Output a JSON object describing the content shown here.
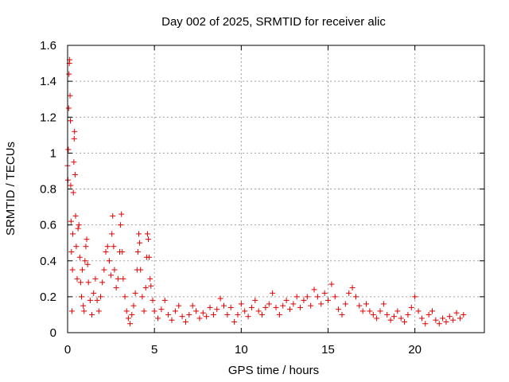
{
  "chart_data": {
    "type": "scatter",
    "title": "Day 002 of 2025, SRMTID for receiver alic",
    "xlabel": "GPS time / hours",
    "ylabel": "SRMTID / TECUs",
    "xlim": [
      0,
      24
    ],
    "ylim": [
      0,
      1.6
    ],
    "xticks": [
      0,
      5,
      10,
      15,
      20
    ],
    "xtick_labels": [
      "0",
      "5",
      "10",
      "15",
      "20"
    ],
    "yticks": [
      0,
      0.2,
      0.4,
      0.6,
      0.8,
      1,
      1.2,
      1.4,
      1.6
    ],
    "ytick_labels": [
      "0",
      "0.2",
      "0.4",
      "0.6",
      "0.8",
      "1",
      "1.2",
      "1.4",
      "1.6"
    ],
    "grid": true,
    "marker": "+",
    "color": "#e00000",
    "series": [
      {
        "name": "SRMTID",
        "points": [
          [
            0.0,
            0.93
          ],
          [
            0.02,
            0.85
          ],
          [
            0.04,
            1.02
          ],
          [
            0.06,
            1.25
          ],
          [
            0.08,
            1.44
          ],
          [
            0.1,
            1.5
          ],
          [
            0.12,
            1.52
          ],
          [
            0.14,
            1.32
          ],
          [
            0.16,
            1.18
          ],
          [
            0.18,
            0.82
          ],
          [
            0.2,
            0.62
          ],
          [
            0.22,
            0.45
          ],
          [
            0.25,
            0.12
          ],
          [
            0.28,
            0.35
          ],
          [
            0.3,
            0.55
          ],
          [
            0.33,
            0.78
          ],
          [
            0.36,
            0.95
          ],
          [
            0.38,
            1.08
          ],
          [
            0.4,
            1.12
          ],
          [
            0.43,
            0.88
          ],
          [
            0.46,
            0.65
          ],
          [
            0.5,
            0.48
          ],
          [
            0.55,
            0.3
          ],
          [
            0.6,
            0.58
          ],
          [
            0.65,
            0.6
          ],
          [
            0.7,
            0.42
          ],
          [
            0.75,
            0.28
          ],
          [
            0.8,
            0.2
          ],
          [
            0.85,
            0.35
          ],
          [
            0.9,
            0.15
          ],
          [
            0.95,
            0.12
          ],
          [
            1.0,
            0.4
          ],
          [
            1.05,
            0.48
          ],
          [
            1.1,
            0.52
          ],
          [
            1.15,
            0.38
          ],
          [
            1.2,
            0.28
          ],
          [
            1.3,
            0.18
          ],
          [
            1.4,
            0.1
          ],
          [
            1.5,
            0.22
          ],
          [
            1.6,
            0.3
          ],
          [
            1.7,
            0.18
          ],
          [
            1.8,
            0.12
          ],
          [
            1.9,
            0.2
          ],
          [
            2.0,
            0.28
          ],
          [
            2.1,
            0.35
          ],
          [
            2.2,
            0.45
          ],
          [
            2.3,
            0.48
          ],
          [
            2.4,
            0.4
          ],
          [
            2.5,
            0.32
          ],
          [
            2.55,
            0.55
          ],
          [
            2.6,
            0.65
          ],
          [
            2.65,
            0.48
          ],
          [
            2.7,
            0.35
          ],
          [
            2.8,
            0.25
          ],
          [
            2.9,
            0.3
          ],
          [
            3.0,
            0.45
          ],
          [
            3.05,
            0.6
          ],
          [
            3.1,
            0.66
          ],
          [
            3.15,
            0.45
          ],
          [
            3.2,
            0.3
          ],
          [
            3.3,
            0.2
          ],
          [
            3.4,
            0.12
          ],
          [
            3.5,
            0.08
          ],
          [
            3.6,
            0.05
          ],
          [
            3.7,
            0.1
          ],
          [
            3.8,
            0.15
          ],
          [
            3.9,
            0.22
          ],
          [
            4.0,
            0.35
          ],
          [
            4.05,
            0.45
          ],
          [
            4.1,
            0.55
          ],
          [
            4.15,
            0.5
          ],
          [
            4.2,
            0.35
          ],
          [
            4.3,
            0.2
          ],
          [
            4.4,
            0.12
          ],
          [
            4.5,
            0.25
          ],
          [
            4.55,
            0.42
          ],
          [
            4.6,
            0.55
          ],
          [
            4.65,
            0.52
          ],
          [
            4.7,
            0.42
          ],
          [
            4.75,
            0.3
          ],
          [
            4.8,
            0.26
          ],
          [
            4.9,
            0.18
          ],
          [
            5.0,
            0.12
          ],
          [
            5.2,
            0.08
          ],
          [
            5.4,
            0.13
          ],
          [
            5.6,
            0.18
          ],
          [
            5.8,
            0.1
          ],
          [
            6.0,
            0.07
          ],
          [
            6.2,
            0.12
          ],
          [
            6.4,
            0.15
          ],
          [
            6.6,
            0.09
          ],
          [
            6.8,
            0.06
          ],
          [
            7.0,
            0.1
          ],
          [
            7.2,
            0.15
          ],
          [
            7.4,
            0.12
          ],
          [
            7.6,
            0.08
          ],
          [
            7.8,
            0.11
          ],
          [
            8.0,
            0.09
          ],
          [
            8.2,
            0.14
          ],
          [
            8.4,
            0.1
          ],
          [
            8.6,
            0.13
          ],
          [
            8.8,
            0.19
          ],
          [
            9.0,
            0.15
          ],
          [
            9.2,
            0.1
          ],
          [
            9.4,
            0.14
          ],
          [
            9.6,
            0.06
          ],
          [
            9.8,
            0.1
          ],
          [
            10.0,
            0.16
          ],
          [
            10.2,
            0.12
          ],
          [
            10.4,
            0.09
          ],
          [
            10.6,
            0.14
          ],
          [
            10.8,
            0.18
          ],
          [
            11.0,
            0.12
          ],
          [
            11.2,
            0.1
          ],
          [
            11.4,
            0.14
          ],
          [
            11.6,
            0.16
          ],
          [
            11.8,
            0.22
          ],
          [
            12.0,
            0.14
          ],
          [
            12.2,
            0.1
          ],
          [
            12.4,
            0.15
          ],
          [
            12.6,
            0.18
          ],
          [
            12.8,
            0.13
          ],
          [
            13.0,
            0.16
          ],
          [
            13.2,
            0.2
          ],
          [
            13.4,
            0.14
          ],
          [
            13.6,
            0.18
          ],
          [
            13.8,
            0.2
          ],
          [
            14.0,
            0.15
          ],
          [
            14.2,
            0.24
          ],
          [
            14.4,
            0.2
          ],
          [
            14.6,
            0.16
          ],
          [
            14.8,
            0.22
          ],
          [
            15.0,
            0.18
          ],
          [
            15.2,
            0.27
          ],
          [
            15.4,
            0.2
          ],
          [
            15.6,
            0.13
          ],
          [
            15.8,
            0.1
          ],
          [
            16.0,
            0.16
          ],
          [
            16.2,
            0.22
          ],
          [
            16.4,
            0.25
          ],
          [
            16.6,
            0.2
          ],
          [
            16.8,
            0.15
          ],
          [
            17.0,
            0.12
          ],
          [
            17.2,
            0.16
          ],
          [
            17.4,
            0.12
          ],
          [
            17.6,
            0.1
          ],
          [
            17.8,
            0.08
          ],
          [
            18.0,
            0.12
          ],
          [
            18.2,
            0.16
          ],
          [
            18.4,
            0.1
          ],
          [
            18.6,
            0.07
          ],
          [
            18.8,
            0.09
          ],
          [
            19.0,
            0.12
          ],
          [
            19.2,
            0.08
          ],
          [
            19.4,
            0.06
          ],
          [
            19.6,
            0.1
          ],
          [
            19.8,
            0.14
          ],
          [
            20.0,
            0.2
          ],
          [
            20.2,
            0.12
          ],
          [
            20.4,
            0.08
          ],
          [
            20.6,
            0.05
          ],
          [
            20.8,
            0.1
          ],
          [
            21.0,
            0.12
          ],
          [
            21.2,
            0.07
          ],
          [
            21.4,
            0.05
          ],
          [
            21.6,
            0.08
          ],
          [
            21.8,
            0.06
          ],
          [
            22.0,
            0.09
          ],
          [
            22.2,
            0.07
          ],
          [
            22.4,
            0.11
          ],
          [
            22.6,
            0.08
          ],
          [
            22.8,
            0.1
          ]
        ]
      }
    ]
  }
}
